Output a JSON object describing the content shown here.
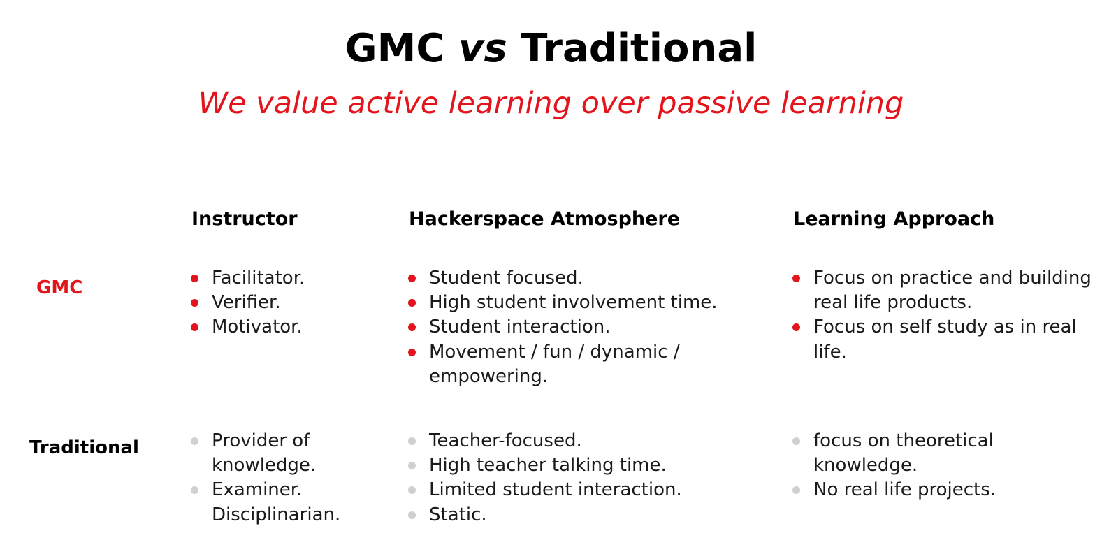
{
  "title": {
    "part1": "GMC",
    "vs": "vs",
    "part2": "Traditional"
  },
  "subtitle": "We value active learning over passive learning",
  "columns": [
    "Instructor",
    "Hackerspace Atmosphere",
    "Learning Approach"
  ],
  "rows": [
    {
      "label": "GMC",
      "cells": [
        [
          "Facilitator.",
          "Verifier.",
          "Motivator."
        ],
        [
          "Student focused.",
          "High student involvement time.",
          "Student interaction.",
          "Movement / fun / dynamic / empowering."
        ],
        [
          "Focus on practice and building real life products.",
          "Focus on self study as in real life."
        ]
      ]
    },
    {
      "label": "Traditional",
      "cells": [
        [
          "Provider of knowledge.",
          "Examiner. Disciplinarian."
        ],
        [
          "Teacher-focused.",
          "High teacher talking time.",
          "Limited student interaction.",
          "Static."
        ],
        [
          "focus on theoretical knowledge.",
          "No real life projects."
        ]
      ]
    }
  ],
  "colors": {
    "accent": "#e3141b",
    "gmc_bullet": "#e3141b",
    "traditional_bullet": "#d0d0d0",
    "text": "#1a1a1a"
  }
}
